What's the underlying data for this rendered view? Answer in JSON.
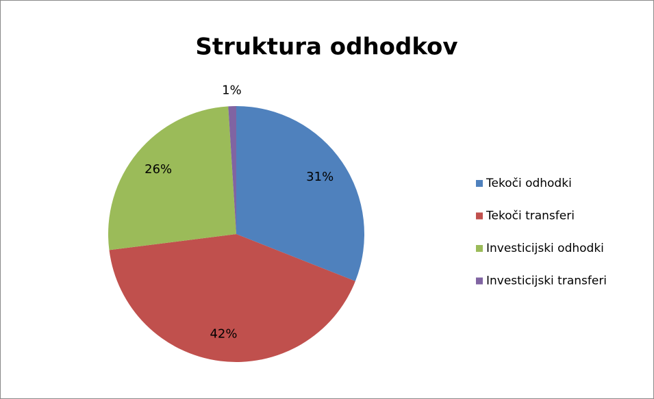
{
  "chart_data": {
    "type": "pie",
    "title": "Struktura odhodkov",
    "categories": [
      "Tekoči odhodki",
      "Tekoči transferi",
      "Investicijski odhodki",
      "Investicijski transferi"
    ],
    "values": [
      31,
      42,
      26,
      1
    ],
    "value_labels": [
      "31%",
      "42%",
      "26%",
      "1%"
    ],
    "colors": [
      "#4f81bd",
      "#c0504d",
      "#9bbb59",
      "#8064a2"
    ],
    "legend": "right"
  }
}
